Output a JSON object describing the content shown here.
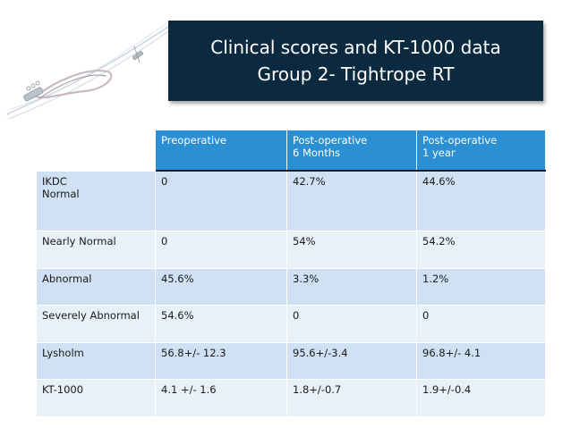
{
  "title": {
    "line1": "Clinical scores and KT-1000 data",
    "line2": "Group 2- Tightrope RT"
  },
  "table": {
    "headers": [
      "",
      [
        "Preoperative"
      ],
      [
        "Post-operative",
        "6 Months"
      ],
      [
        "Post-operative",
        "1 year"
      ]
    ],
    "rows": [
      {
        "label": [
          "IKDC",
          "Normal"
        ],
        "values": [
          "0",
          "42.7%",
          "44.6%"
        ]
      },
      {
        "label": [
          "Nearly Normal"
        ],
        "values": [
          "0",
          "54%",
          "54.2%"
        ]
      },
      {
        "label": [
          "Abnormal"
        ],
        "values": [
          "45.6%",
          "3.3%",
          "1.2%"
        ]
      },
      {
        "label": [
          "Severely Abnormal"
        ],
        "values": [
          "54.6%",
          "0",
          "0"
        ]
      },
      {
        "label": [
          "Lysholm"
        ],
        "values": [
          "56.8+/- 12.3",
          "95.6+/-3.4",
          "96.8+/- 4.1"
        ]
      },
      {
        "label": [
          "KT-1000"
        ],
        "values": [
          "4.1 +/- 1.6",
          "1.8+/-0.7",
          "1.9+/-0.4"
        ]
      }
    ]
  },
  "colors": {
    "title_bg": "#0c2a3f",
    "header_bg": "#2a8fd3",
    "row_dark": "#cfe1f2",
    "row_light": "#e8f0f8"
  }
}
